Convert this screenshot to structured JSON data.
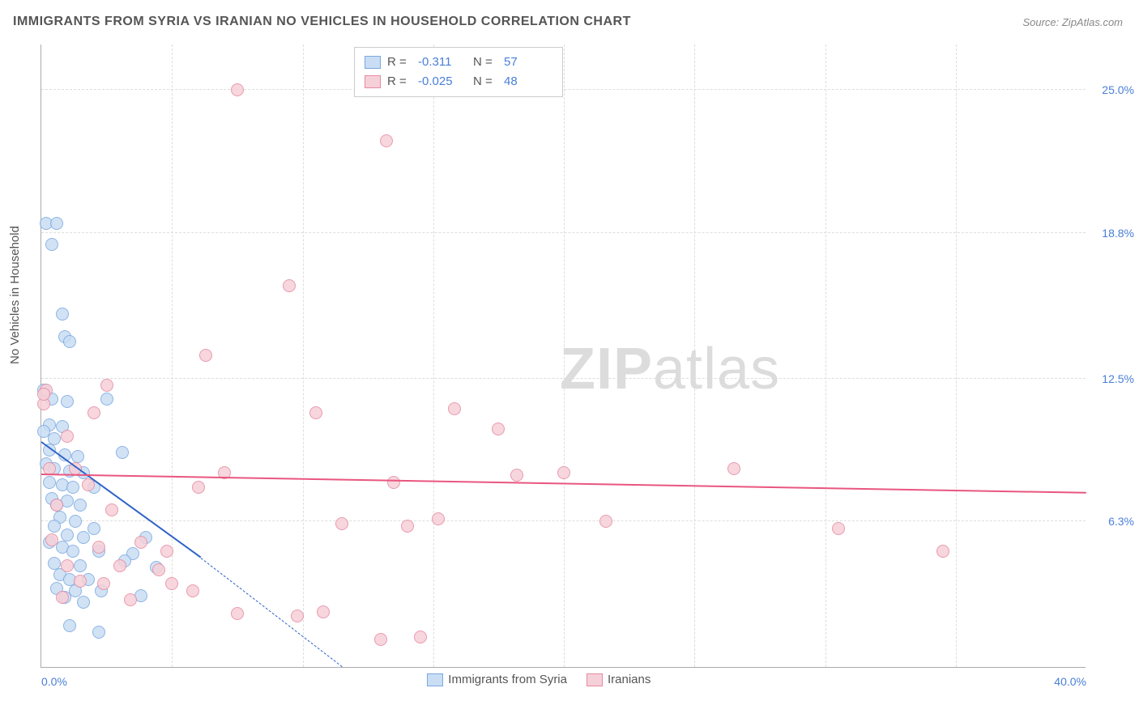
{
  "title": "IMMIGRANTS FROM SYRIA VS IRANIAN NO VEHICLES IN HOUSEHOLD CORRELATION CHART",
  "source": "Source: ZipAtlas.com",
  "ylabel": "No Vehicles in Household",
  "watermark_a": "ZIP",
  "watermark_b": "atlas",
  "chart": {
    "type": "scatter",
    "xlim": [
      0,
      40
    ],
    "ylim": [
      0,
      27
    ],
    "xticks": [
      {
        "pos": 0,
        "label": "0.0%"
      },
      {
        "pos": 40,
        "label": "40.0%"
      }
    ],
    "xgrid": [
      5,
      10,
      15,
      20,
      25,
      30,
      35
    ],
    "yticks": [
      {
        "pos": 6.3,
        "label": "6.3%"
      },
      {
        "pos": 12.5,
        "label": "12.5%"
      },
      {
        "pos": 18.8,
        "label": "18.8%"
      },
      {
        "pos": 25.0,
        "label": "25.0%"
      }
    ],
    "background_color": "#ffffff",
    "point_radius": 8,
    "series": [
      {
        "name": "Immigrants from Syria",
        "fill": "#c9ddf4",
        "stroke": "#7aa8e0",
        "trend_color": "#2e63c6",
        "R": "-0.311",
        "N": "57",
        "trend": {
          "x1": 0,
          "y1": 9.7,
          "x2": 6.1,
          "y2": 4.7,
          "x_extend": 11.5,
          "y_extend": 0
        },
        "points": [
          [
            0.2,
            19.2
          ],
          [
            0.6,
            19.2
          ],
          [
            0.4,
            18.3
          ],
          [
            0.8,
            15.3
          ],
          [
            0.9,
            14.3
          ],
          [
            1.1,
            14.1
          ],
          [
            0.1,
            12.0
          ],
          [
            0.4,
            11.6
          ],
          [
            1.0,
            11.5
          ],
          [
            2.5,
            11.6
          ],
          [
            0.3,
            10.5
          ],
          [
            0.8,
            10.4
          ],
          [
            0.1,
            10.2
          ],
          [
            0.5,
            9.9
          ],
          [
            0.3,
            9.4
          ],
          [
            0.9,
            9.2
          ],
          [
            1.4,
            9.1
          ],
          [
            3.1,
            9.3
          ],
          [
            0.2,
            8.8
          ],
          [
            0.5,
            8.6
          ],
          [
            1.1,
            8.5
          ],
          [
            1.6,
            8.4
          ],
          [
            0.3,
            8.0
          ],
          [
            0.8,
            7.9
          ],
          [
            1.2,
            7.8
          ],
          [
            2.0,
            7.8
          ],
          [
            0.4,
            7.3
          ],
          [
            1.0,
            7.2
          ],
          [
            0.6,
            7.0
          ],
          [
            1.5,
            7.0
          ],
          [
            0.7,
            6.5
          ],
          [
            1.3,
            6.3
          ],
          [
            0.5,
            6.1
          ],
          [
            1.0,
            5.7
          ],
          [
            1.6,
            5.6
          ],
          [
            0.3,
            5.4
          ],
          [
            0.8,
            5.2
          ],
          [
            1.2,
            5.0
          ],
          [
            2.2,
            5.0
          ],
          [
            3.5,
            4.9
          ],
          [
            0.5,
            4.5
          ],
          [
            1.5,
            4.4
          ],
          [
            4.4,
            4.3
          ],
          [
            0.7,
            4.0
          ],
          [
            1.1,
            3.8
          ],
          [
            1.8,
            3.8
          ],
          [
            3.2,
            4.6
          ],
          [
            0.6,
            3.4
          ],
          [
            1.3,
            3.3
          ],
          [
            2.3,
            3.3
          ],
          [
            3.8,
            3.1
          ],
          [
            0.9,
            3.0
          ],
          [
            1.6,
            2.8
          ],
          [
            2.2,
            1.5
          ],
          [
            1.1,
            1.8
          ],
          [
            2.0,
            6.0
          ],
          [
            4.0,
            5.6
          ]
        ]
      },
      {
        "name": "Iranians",
        "fill": "#f6d0d8",
        "stroke": "#e58aa2",
        "trend_color": "#e9567f",
        "R": "-0.025",
        "N": "48",
        "trend": {
          "x1": 0,
          "y1": 8.3,
          "x2": 40,
          "y2": 7.5
        },
        "points": [
          [
            7.5,
            25.0
          ],
          [
            13.2,
            22.8
          ],
          [
            9.5,
            16.5
          ],
          [
            6.3,
            13.5
          ],
          [
            0.2,
            12.0
          ],
          [
            2.5,
            12.2
          ],
          [
            0.1,
            11.4
          ],
          [
            2.0,
            11.0
          ],
          [
            10.5,
            11.0
          ],
          [
            15.8,
            11.2
          ],
          [
            1.0,
            10.0
          ],
          [
            17.5,
            10.3
          ],
          [
            0.3,
            8.6
          ],
          [
            1.3,
            8.6
          ],
          [
            7.0,
            8.4
          ],
          [
            1.8,
            7.9
          ],
          [
            6.0,
            7.8
          ],
          [
            13.5,
            8.0
          ],
          [
            18.2,
            8.3
          ],
          [
            20.0,
            8.4
          ],
          [
            26.5,
            8.6
          ],
          [
            0.6,
            7.0
          ],
          [
            2.7,
            6.8
          ],
          [
            11.5,
            6.2
          ],
          [
            14.0,
            6.1
          ],
          [
            15.2,
            6.4
          ],
          [
            21.6,
            6.3
          ],
          [
            30.5,
            6.0
          ],
          [
            0.4,
            5.5
          ],
          [
            2.2,
            5.2
          ],
          [
            3.8,
            5.4
          ],
          [
            4.8,
            5.0
          ],
          [
            34.5,
            5.0
          ],
          [
            1.0,
            4.4
          ],
          [
            3.0,
            4.4
          ],
          [
            4.5,
            4.2
          ],
          [
            1.5,
            3.7
          ],
          [
            2.4,
            3.6
          ],
          [
            5.0,
            3.6
          ],
          [
            5.8,
            3.3
          ],
          [
            0.8,
            3.0
          ],
          [
            3.4,
            2.9
          ],
          [
            7.5,
            2.3
          ],
          [
            9.8,
            2.2
          ],
          [
            10.8,
            2.4
          ],
          [
            13.0,
            1.2
          ],
          [
            14.5,
            1.3
          ],
          [
            0.1,
            11.8
          ]
        ]
      }
    ]
  },
  "legend_top": {
    "r_label": "R =",
    "n_label": "N ="
  }
}
